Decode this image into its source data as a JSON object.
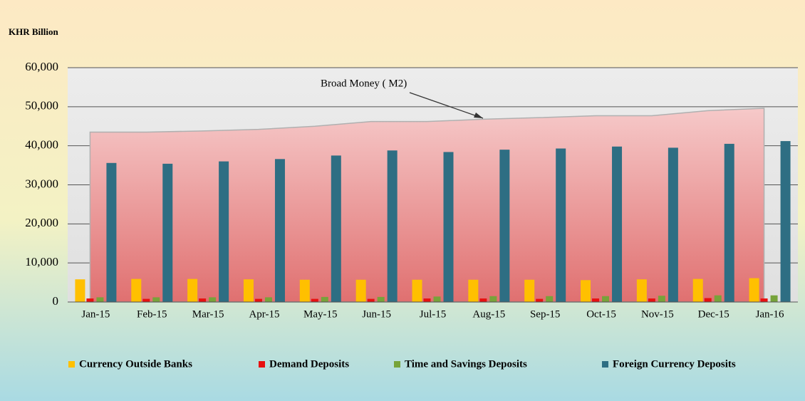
{
  "chart_data": {
    "type": "bar",
    "y_axis_label": "KHR Billion",
    "categories": [
      "Jan-15",
      "Feb-15",
      "Mar-15",
      "Apr-15",
      "May-15",
      "Jun-15",
      "Jul-15",
      "Aug-15",
      "Sep-15",
      "Oct-15",
      "Nov-15",
      "Dec-15",
      "Jan-16"
    ],
    "series": [
      {
        "name": "Currency Outside Banks",
        "color": "#ffc000",
        "values": [
          5800,
          5900,
          5900,
          5800,
          5700,
          5700,
          5700,
          5700,
          5700,
          5600,
          5800,
          5900,
          6100
        ]
      },
      {
        "name": "Demand Deposits",
        "color": "#e81010",
        "values": [
          900,
          800,
          900,
          800,
          800,
          800,
          900,
          900,
          800,
          900,
          900,
          1000,
          900
        ]
      },
      {
        "name": "Time and Savings Deposits",
        "color": "#77a33a",
        "values": [
          1200,
          1200,
          1200,
          1200,
          1300,
          1300,
          1400,
          1500,
          1500,
          1500,
          1600,
          1700,
          1700
        ]
      },
      {
        "name": "Foreign Currency Deposits",
        "color": "#2e6e83",
        "values": [
          35600,
          35400,
          36000,
          36600,
          37500,
          38800,
          38400,
          39000,
          39300,
          39800,
          39500,
          40500,
          41200
        ]
      },
      {
        "name": "Broad Money ( M2)",
        "type": "area",
        "values": [
          43500,
          43500,
          43800,
          44200,
          45000,
          46200,
          46200,
          46800,
          47200,
          47700,
          47700,
          49000,
          49600
        ]
      }
    ],
    "ylim": [
      0,
      60000
    ],
    "yticks": [
      0,
      {
        "value": 10000,
        "label": "10,000"
      },
      {
        "value": 20000,
        "label": "20,000"
      },
      {
        "value": 30000,
        "label": "30,000"
      },
      {
        "value": 40000,
        "label": "40,000"
      },
      {
        "value": 50000,
        "label": "50,000"
      },
      {
        "value": 60000,
        "label": "60,000"
      }
    ],
    "grid": true
  }
}
